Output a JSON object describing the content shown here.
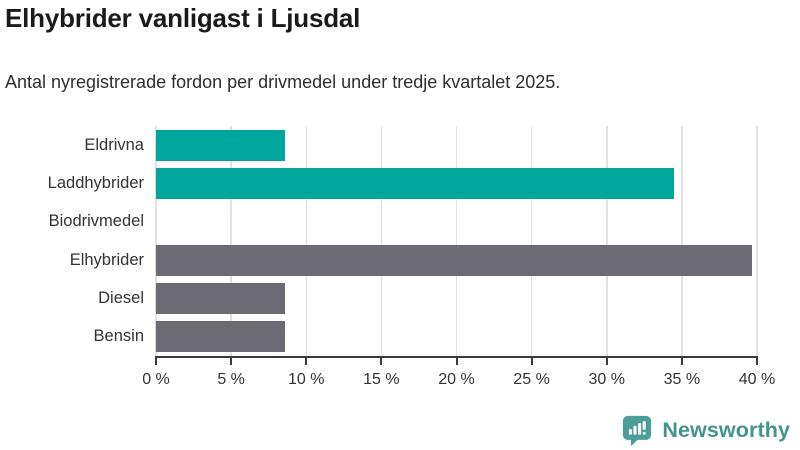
{
  "header": {
    "title": "Elhybrider vanligast i Ljusdal",
    "subtitle": "Antal nyregistrerade fordon per drivmedel under tredje kvartalet 2025."
  },
  "chart_data": {
    "type": "bar",
    "orientation": "horizontal",
    "title": "Elhybrider vanligast i Ljusdal",
    "xlabel": "",
    "ylabel": "",
    "unit": "%",
    "categories": [
      "Eldrivna",
      "Laddhybrider",
      "Biodrivmedel",
      "Elhybrider",
      "Diesel",
      "Bensin"
    ],
    "values": [
      8.6,
      34.5,
      0,
      39.7,
      8.6,
      8.6
    ],
    "bar_colors": [
      "#00a59b",
      "#00a59b",
      "#6c6a72",
      "#6c6a72",
      "#6c6a72",
      "#6c6a72"
    ],
    "xlim": [
      0,
      40
    ],
    "x_tick_values": [
      0,
      5,
      10,
      15,
      20,
      25,
      30,
      35,
      40
    ],
    "x_ticks": [
      "0 %",
      "5 %",
      "10 %",
      "15 %",
      "20 %",
      "25 %",
      "30 %",
      "35 %",
      "40 %"
    ],
    "grid": true,
    "legend": false
  },
  "colors": {
    "teal": "#00a59b",
    "gray": "#6c6a72",
    "grid": "#e1e1e4",
    "axis": "#3b3b3b",
    "text": "#333333",
    "title": "#1a1a1a",
    "brand": "#43948c",
    "brand_icon": "#4a9e97"
  },
  "footer": {
    "brand": "Newsworthy"
  },
  "icons": {
    "logo": "newsworthy-bubble-barchart-icon"
  }
}
